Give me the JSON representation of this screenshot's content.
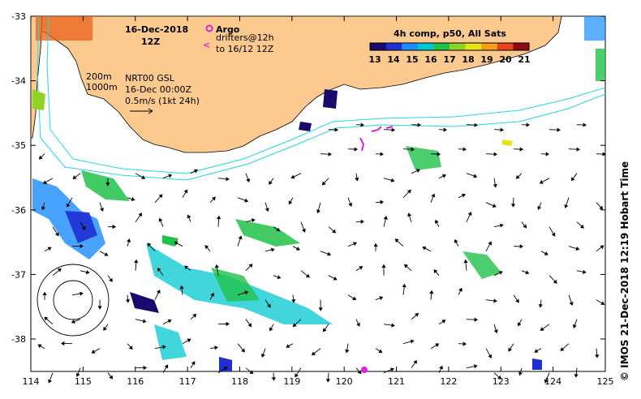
{
  "header": {
    "date": "16-Dec-2018",
    "time": "12Z",
    "argo_label": "Argo",
    "drifters_label": "drifters@12h",
    "drifters_to": "to 16/12 12Z",
    "drifter_symbol": "<",
    "product_label": "4h comp, p50, All Sats"
  },
  "info": {
    "contour_200": "200m",
    "contour_1000": "1000m",
    "product": "NRT00 GSL",
    "product_date": "16-Dec 00:00Z",
    "scale": "0.5m/s (1kt 24h)"
  },
  "colorbar": {
    "ticks": [
      "13",
      "14",
      "15",
      "16",
      "17",
      "18",
      "19",
      "20",
      "21"
    ],
    "colors": [
      "#1a0a6e",
      "#1f2fd1",
      "#1a8cff",
      "#00c8d0",
      "#21c24a",
      "#8fd424",
      "#e6e617",
      "#f5a019",
      "#e8431a",
      "#8c0d0d"
    ]
  },
  "axes": {
    "lon_labels": [
      "114",
      "115",
      "116",
      "117",
      "118",
      "119",
      "120",
      "121",
      "122",
      "123",
      "124",
      "125"
    ],
    "lat_labels": [
      "-33",
      "-34",
      "-35",
      "-36",
      "-37",
      "-38"
    ]
  },
  "credit": "© IMOS 21-Dec-2018 12:19 Hobart Time",
  "colors": {
    "land": "#fcc98e",
    "contour": "#20d8e6",
    "argo": "#e020e0",
    "drifter": "#e020e0"
  }
}
